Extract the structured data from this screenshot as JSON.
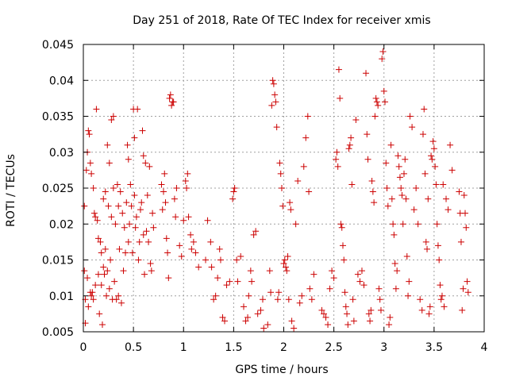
{
  "chart_data": {
    "type": "scatter",
    "title": "Day 251 of 2018, Rate Of TEC Index for receiver xmis",
    "xlabel": "GPS time / hours",
    "ylabel": "ROTI / TECUs",
    "xlim": [
      0,
      4
    ],
    "ylim": [
      0.005,
      0.045
    ],
    "x_ticks": [
      0,
      0.5,
      1,
      1.5,
      2,
      2.5,
      3,
      3.5,
      4
    ],
    "x_tick_labels": [
      "0",
      "0.5",
      "1",
      "1.5",
      "2",
      "2.5",
      "3",
      "3.5",
      "4"
    ],
    "y_ticks": [
      0.005,
      0.01,
      0.015,
      0.02,
      0.025,
      0.03,
      0.035,
      0.04,
      0.045
    ],
    "y_tick_labels": [
      "0.005",
      "0.01",
      "0.015",
      "0.02",
      "0.025",
      "0.03",
      "0.035",
      "0.04",
      "0.045"
    ],
    "grid": true,
    "marker": "+",
    "marker_color": "#cc0000",
    "series": [
      {
        "name": "ROTI",
        "points": [
          [
            0.01,
            0.0225
          ],
          [
            0.01,
            0.0135
          ],
          [
            0.02,
            0.0095
          ],
          [
            0.02,
            0.0062
          ],
          [
            0.03,
            0.0275
          ],
          [
            0.04,
            0.03
          ],
          [
            0.04,
            0.0125
          ],
          [
            0.05,
            0.0085
          ],
          [
            0.05,
            0.033
          ],
          [
            0.06,
            0.0325
          ],
          [
            0.07,
            0.0285
          ],
          [
            0.07,
            0.0105
          ],
          [
            0.08,
            0.01
          ],
          [
            0.08,
            0.027
          ],
          [
            0.09,
            0.0105
          ],
          [
            0.1,
            0.0095
          ],
          [
            0.1,
            0.025
          ],
          [
            0.11,
            0.0215
          ],
          [
            0.12,
            0.021
          ],
          [
            0.12,
            0.0115
          ],
          [
            0.13,
            0.036
          ],
          [
            0.14,
            0.0205
          ],
          [
            0.15,
            0.018
          ],
          [
            0.15,
            0.013
          ],
          [
            0.16,
            0.0075
          ],
          [
            0.17,
            0.0175
          ],
          [
            0.18,
            0.0115
          ],
          [
            0.18,
            0.016
          ],
          [
            0.19,
            0.006
          ],
          [
            0.2,
            0.014
          ],
          [
            0.2,
            0.0235
          ],
          [
            0.21,
            0.013
          ],
          [
            0.22,
            0.0245
          ],
          [
            0.22,
            0.0165
          ],
          [
            0.23,
            0.01
          ],
          [
            0.24,
            0.031
          ],
          [
            0.24,
            0.0135
          ],
          [
            0.25,
            0.0225
          ],
          [
            0.26,
            0.011
          ],
          [
            0.26,
            0.0285
          ],
          [
            0.27,
            0.015
          ],
          [
            0.28,
            0.0345
          ],
          [
            0.28,
            0.021
          ],
          [
            0.29,
            0.0095
          ],
          [
            0.3,
            0.035
          ],
          [
            0.3,
            0.025
          ],
          [
            0.31,
            0.012
          ],
          [
            0.32,
            0.02
          ],
          [
            0.33,
            0.0095
          ],
          [
            0.34,
            0.0255
          ],
          [
            0.35,
            0.0225
          ],
          [
            0.35,
            0.01
          ],
          [
            0.36,
            0.0165
          ],
          [
            0.37,
            0.0245
          ],
          [
            0.38,
            0.009
          ],
          [
            0.39,
            0.0215
          ],
          [
            0.4,
            0.0135
          ],
          [
            0.41,
            0.0195
          ],
          [
            0.42,
            0.016
          ],
          [
            0.43,
            0.023
          ],
          [
            0.44,
            0.031
          ],
          [
            0.45,
            0.029
          ],
          [
            0.45,
            0.0175
          ],
          [
            0.46,
            0.02
          ],
          [
            0.47,
            0.0255
          ],
          [
            0.48,
            0.0225
          ],
          [
            0.49,
            0.016
          ],
          [
            0.5,
            0.036
          ],
          [
            0.51,
            0.032
          ],
          [
            0.51,
            0.024
          ],
          [
            0.52,
            0.0195
          ],
          [
            0.53,
            0.021
          ],
          [
            0.54,
            0.036
          ],
          [
            0.55,
            0.015
          ],
          [
            0.56,
            0.0175
          ],
          [
            0.57,
            0.022
          ],
          [
            0.58,
            0.023
          ],
          [
            0.59,
            0.033
          ],
          [
            0.6,
            0.0295
          ],
          [
            0.6,
            0.0185
          ],
          [
            0.61,
            0.013
          ],
          [
            0.62,
            0.0285
          ],
          [
            0.63,
            0.019
          ],
          [
            0.64,
            0.024
          ],
          [
            0.65,
            0.0175
          ],
          [
            0.66,
            0.028
          ],
          [
            0.67,
            0.0145
          ],
          [
            0.68,
            0.0135
          ],
          [
            0.69,
            0.0215
          ],
          [
            0.7,
            0.0195
          ],
          [
            0.78,
            0.0255
          ],
          [
            0.79,
            0.022
          ],
          [
            0.8,
            0.0245
          ],
          [
            0.81,
            0.027
          ],
          [
            0.82,
            0.023
          ],
          [
            0.83,
            0.018
          ],
          [
            0.84,
            0.016
          ],
          [
            0.85,
            0.0125
          ],
          [
            0.86,
            0.0375
          ],
          [
            0.87,
            0.038
          ],
          [
            0.88,
            0.0365
          ],
          [
            0.89,
            0.037
          ],
          [
            0.9,
            0.037
          ],
          [
            0.91,
            0.0235
          ],
          [
            0.92,
            0.021
          ],
          [
            0.93,
            0.025
          ],
          [
            0.96,
            0.017
          ],
          [
            0.98,
            0.0155
          ],
          [
            1.0,
            0.0205
          ],
          [
            1.02,
            0.026
          ],
          [
            1.03,
            0.025
          ],
          [
            1.04,
            0.027
          ],
          [
            1.05,
            0.021
          ],
          [
            1.07,
            0.0185
          ],
          [
            1.08,
            0.0165
          ],
          [
            1.1,
            0.0175
          ],
          [
            1.12,
            0.016
          ],
          [
            1.15,
            0.014
          ],
          [
            1.22,
            0.015
          ],
          [
            1.24,
            0.0205
          ],
          [
            1.27,
            0.0175
          ],
          [
            1.28,
            0.014
          ],
          [
            1.3,
            0.0095
          ],
          [
            1.32,
            0.01
          ],
          [
            1.34,
            0.0125
          ],
          [
            1.36,
            0.0165
          ],
          [
            1.37,
            0.015
          ],
          [
            1.39,
            0.007
          ],
          [
            1.41,
            0.0065
          ],
          [
            1.43,
            0.0115
          ],
          [
            1.46,
            0.012
          ],
          [
            1.49,
            0.0235
          ],
          [
            1.5,
            0.0245
          ],
          [
            1.51,
            0.025
          ],
          [
            1.53,
            0.015
          ],
          [
            1.54,
            0.012
          ],
          [
            1.57,
            0.0155
          ],
          [
            1.6,
            0.0085
          ],
          [
            1.62,
            0.0065
          ],
          [
            1.64,
            0.007
          ],
          [
            1.65,
            0.01
          ],
          [
            1.67,
            0.0135
          ],
          [
            1.68,
            0.012
          ],
          [
            1.7,
            0.0185
          ],
          [
            1.72,
            0.019
          ],
          [
            1.74,
            0.0075
          ],
          [
            1.77,
            0.008
          ],
          [
            1.79,
            0.0095
          ],
          [
            1.8,
            0.0055
          ],
          [
            1.84,
            0.006
          ],
          [
            1.86,
            0.0135
          ],
          [
            1.87,
            0.0105
          ],
          [
            1.88,
            0.0365
          ],
          [
            1.89,
            0.04
          ],
          [
            1.9,
            0.0395
          ],
          [
            1.91,
            0.038
          ],
          [
            1.92,
            0.037
          ],
          [
            1.93,
            0.0335
          ],
          [
            1.94,
            0.0095
          ],
          [
            1.95,
            0.0105
          ],
          [
            1.96,
            0.0285
          ],
          [
            1.97,
            0.027
          ],
          [
            1.98,
            0.025
          ],
          [
            1.99,
            0.0225
          ],
          [
            2.0,
            0.0145
          ],
          [
            2.01,
            0.015
          ],
          [
            2.02,
            0.014
          ],
          [
            2.03,
            0.0135
          ],
          [
            2.04,
            0.0155
          ],
          [
            2.05,
            0.0095
          ],
          [
            2.06,
            0.023
          ],
          [
            2.07,
            0.022
          ],
          [
            2.08,
            0.0065
          ],
          [
            2.1,
            0.0055
          ],
          [
            2.12,
            0.02
          ],
          [
            2.14,
            0.026
          ],
          [
            2.16,
            0.009
          ],
          [
            2.18,
            0.01
          ],
          [
            2.2,
            0.028
          ],
          [
            2.22,
            0.032
          ],
          [
            2.24,
            0.035
          ],
          [
            2.25,
            0.0245
          ],
          [
            2.26,
            0.011
          ],
          [
            2.28,
            0.0095
          ],
          [
            2.3,
            0.013
          ],
          [
            2.38,
            0.008
          ],
          [
            2.4,
            0.0075
          ],
          [
            2.42,
            0.007
          ],
          [
            2.44,
            0.006
          ],
          [
            2.46,
            0.011
          ],
          [
            2.48,
            0.0135
          ],
          [
            2.5,
            0.0125
          ],
          [
            2.52,
            0.029
          ],
          [
            2.53,
            0.03
          ],
          [
            2.54,
            0.028
          ],
          [
            2.55,
            0.0415
          ],
          [
            2.56,
            0.0375
          ],
          [
            2.57,
            0.02
          ],
          [
            2.58,
            0.0195
          ],
          [
            2.59,
            0.017
          ],
          [
            2.6,
            0.015
          ],
          [
            2.61,
            0.0105
          ],
          [
            2.62,
            0.0085
          ],
          [
            2.63,
            0.0075
          ],
          [
            2.64,
            0.006
          ],
          [
            2.65,
            0.0305
          ],
          [
            2.66,
            0.031
          ],
          [
            2.67,
            0.032
          ],
          [
            2.68,
            0.0255
          ],
          [
            2.69,
            0.0095
          ],
          [
            2.7,
            0.0065
          ],
          [
            2.72,
            0.0345
          ],
          [
            2.74,
            0.013
          ],
          [
            2.76,
            0.012
          ],
          [
            2.78,
            0.0135
          ],
          [
            2.8,
            0.0115
          ],
          [
            2.82,
            0.041
          ],
          [
            2.83,
            0.0325
          ],
          [
            2.84,
            0.029
          ],
          [
            2.85,
            0.0075
          ],
          [
            2.86,
            0.0065
          ],
          [
            2.87,
            0.008
          ],
          [
            2.88,
            0.026
          ],
          [
            2.89,
            0.0245
          ],
          [
            2.9,
            0.023
          ],
          [
            2.91,
            0.035
          ],
          [
            2.92,
            0.0375
          ],
          [
            2.93,
            0.037
          ],
          [
            2.94,
            0.0365
          ],
          [
            2.95,
            0.011
          ],
          [
            2.96,
            0.0095
          ],
          [
            2.97,
            0.008
          ],
          [
            2.98,
            0.043
          ],
          [
            2.99,
            0.044
          ],
          [
            3.0,
            0.0385
          ],
          [
            3.01,
            0.037
          ],
          [
            3.02,
            0.0285
          ],
          [
            3.03,
            0.025
          ],
          [
            3.04,
            0.0225
          ],
          [
            3.05,
            0.006
          ],
          [
            3.06,
            0.007
          ],
          [
            3.07,
            0.031
          ],
          [
            3.08,
            0.0235
          ],
          [
            3.09,
            0.02
          ],
          [
            3.1,
            0.0185
          ],
          [
            3.11,
            0.0145
          ],
          [
            3.12,
            0.011
          ],
          [
            3.13,
            0.0135
          ],
          [
            3.14,
            0.0295
          ],
          [
            3.15,
            0.028
          ],
          [
            3.16,
            0.0265
          ],
          [
            3.17,
            0.025
          ],
          [
            3.18,
            0.024
          ],
          [
            3.19,
            0.02
          ],
          [
            3.2,
            0.027
          ],
          [
            3.21,
            0.029
          ],
          [
            3.22,
            0.0235
          ],
          [
            3.23,
            0.0155
          ],
          [
            3.24,
            0.01
          ],
          [
            3.25,
            0.012
          ],
          [
            3.26,
            0.035
          ],
          [
            3.28,
            0.0335
          ],
          [
            3.3,
            0.022
          ],
          [
            3.32,
            0.025
          ],
          [
            3.34,
            0.02
          ],
          [
            3.36,
            0.0095
          ],
          [
            3.38,
            0.008
          ],
          [
            3.39,
            0.0325
          ],
          [
            3.4,
            0.036
          ],
          [
            3.41,
            0.027
          ],
          [
            3.42,
            0.0175
          ],
          [
            3.43,
            0.0165
          ],
          [
            3.44,
            0.0235
          ],
          [
            3.45,
            0.0075
          ],
          [
            3.46,
            0.0085
          ],
          [
            3.47,
            0.0295
          ],
          [
            3.48,
            0.029
          ],
          [
            3.49,
            0.0315
          ],
          [
            3.5,
            0.0305
          ],
          [
            3.51,
            0.028
          ],
          [
            3.52,
            0.0255
          ],
          [
            3.53,
            0.02
          ],
          [
            3.54,
            0.017
          ],
          [
            3.55,
            0.015
          ],
          [
            3.56,
            0.0115
          ],
          [
            3.57,
            0.0095
          ],
          [
            3.58,
            0.01
          ],
          [
            3.59,
            0.0255
          ],
          [
            3.6,
            0.0085
          ],
          [
            3.62,
            0.0235
          ],
          [
            3.64,
            0.022
          ],
          [
            3.66,
            0.031
          ],
          [
            3.68,
            0.0275
          ],
          [
            3.75,
            0.0245
          ],
          [
            3.76,
            0.0215
          ],
          [
            3.77,
            0.0175
          ],
          [
            3.78,
            0.008
          ],
          [
            3.79,
            0.011
          ],
          [
            3.8,
            0.024
          ],
          [
            3.81,
            0.0215
          ],
          [
            3.82,
            0.0195
          ],
          [
            3.83,
            0.012
          ],
          [
            3.84,
            0.0105
          ]
        ]
      }
    ]
  }
}
